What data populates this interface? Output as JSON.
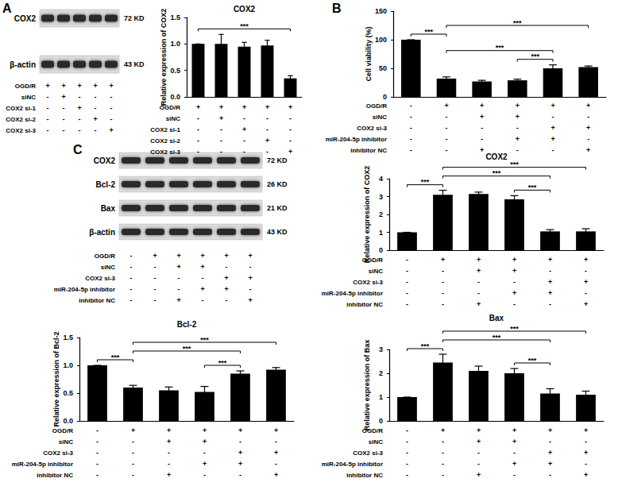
{
  "panel_labels": [
    "A",
    "B",
    "C"
  ],
  "blots": [
    {
      "bands": [
        {
          "name": "COX2",
          "size": "72 KD"
        },
        {
          "name": "β-actin",
          "size": "43 KD"
        }
      ],
      "conditions": [
        {
          "name": "OGD/R",
          "marks": [
            "+",
            "+",
            "+",
            "+",
            "+"
          ]
        },
        {
          "name": "siNC",
          "marks": [
            "-",
            "+",
            "-",
            "-",
            "-"
          ]
        },
        {
          "name": "COX2 si-1",
          "marks": [
            "-",
            "-",
            "+",
            "-",
            "-"
          ]
        },
        {
          "name": "COX2 si-2",
          "marks": [
            "-",
            "-",
            "-",
            "+",
            "-"
          ]
        },
        {
          "name": "COX2 si-3",
          "marks": [
            "-",
            "-",
            "-",
            "-",
            "+"
          ]
        }
      ]
    },
    {
      "bands": [
        {
          "name": "COX2",
          "size": "72 KD"
        },
        {
          "name": "Bcl-2",
          "size": "26 KD"
        },
        {
          "name": "Bax",
          "size": "21 KD"
        },
        {
          "name": "β-actin",
          "size": "43 KD"
        }
      ],
      "conditions": [
        {
          "name": "OGD/R",
          "marks": [
            "-",
            "+",
            "+",
            "+",
            "+",
            "+"
          ]
        },
        {
          "name": "siNC",
          "marks": [
            "-",
            "-",
            "+",
            "+",
            "-",
            "-"
          ]
        },
        {
          "name": "COX2 si-3",
          "marks": [
            "-",
            "-",
            "-",
            "-",
            "+",
            "+"
          ]
        },
        {
          "name": "miR-204-5p inhibitor",
          "marks": [
            "-",
            "-",
            "-",
            "+",
            "+",
            "-"
          ]
        },
        {
          "name": "inhibitor NC",
          "marks": [
            "-",
            "-",
            "+",
            "-",
            "-",
            "+"
          ]
        }
      ]
    }
  ],
  "chart_data": [
    {
      "type": "bar",
      "title": "COX2",
      "y_label": "Relative expression of COX2",
      "categories": [
        null,
        null,
        null,
        null,
        null
      ],
      "values": [
        1.0,
        1.0,
        0.95,
        0.97,
        0.35
      ],
      "errors": [
        0,
        0.18,
        0.08,
        0.1,
        0.05
      ],
      "color": "#000000",
      "ylim": [
        0,
        1.5
      ],
      "yticks": [
        {
          "value": 0,
          "label": "0.0"
        },
        0.5,
        {
          "value": 1,
          "label": "1.0"
        },
        1.5
      ],
      "grid": false,
      "tick_labels": "y",
      "conditions": [
        {
          "name": "OGD/R",
          "marks": [
            "+",
            "+",
            "+",
            "+",
            "+"
          ]
        },
        {
          "name": "siNC",
          "marks": [
            "-",
            "+",
            "-",
            "-",
            "-"
          ]
        },
        {
          "name": "COX2 si-1",
          "marks": [
            "-",
            "-",
            "+",
            "-",
            "-"
          ]
        },
        {
          "name": "COX2 si-2",
          "marks": [
            "-",
            "-",
            "-",
            "+",
            "-"
          ]
        },
        {
          "name": "COX2 si-3",
          "marks": [
            "-",
            "-",
            "-",
            "-",
            "+"
          ]
        }
      ],
      "significance": [
        {
          "from": 0,
          "to": 4,
          "label": "***"
        }
      ]
    },
    {
      "type": "bar",
      "y_label": "Cell viability (%)",
      "categories": [
        null,
        null,
        null,
        null,
        null,
        null
      ],
      "values": [
        100,
        32,
        27,
        29,
        50,
        52
      ],
      "errors": [
        0,
        3,
        2,
        2,
        6,
        2
      ],
      "color": "#000000",
      "ylim": [
        0,
        150
      ],
      "yticks": [
        0,
        50,
        100,
        150
      ],
      "grid": false,
      "tick_labels": "y",
      "conditions": [
        {
          "name": "OGD/R",
          "marks": [
            "-",
            "+",
            "+",
            "+",
            "+",
            "+"
          ]
        },
        {
          "name": "siNC",
          "marks": [
            "-",
            "-",
            "+",
            "+",
            "-",
            "-"
          ]
        },
        {
          "name": "COX2 si-3",
          "marks": [
            "-",
            "-",
            "-",
            "-",
            "+",
            "+"
          ]
        },
        {
          "name": "miR-204-5p inhibitor",
          "marks": [
            "-",
            "-",
            "-",
            "+",
            "+",
            "-"
          ]
        },
        {
          "name": "inhibitor NC",
          "marks": [
            "-",
            "-",
            "+",
            "-",
            "-",
            "+"
          ]
        }
      ],
      "significance": [
        {
          "from": 0,
          "to": 1,
          "label": "***"
        },
        {
          "from": 3,
          "to": 4,
          "label": "***"
        },
        {
          "from": 1,
          "to": 4,
          "label": "***"
        },
        {
          "from": 1,
          "to": 5,
          "label": "***"
        }
      ]
    },
    {
      "type": "bar",
      "title": "COX2",
      "y_label": "Relative expression of COX2",
      "categories": [
        null,
        null,
        null,
        null,
        null,
        null
      ],
      "values": [
        1.0,
        3.1,
        3.15,
        2.85,
        1.05,
        1.05
      ],
      "errors": [
        0,
        0.25,
        0.1,
        0.2,
        0.1,
        0.15
      ],
      "color": "#000000",
      "ylim": [
        0,
        4
      ],
      "yticks": [
        0,
        1,
        2,
        3,
        4
      ],
      "grid": false,
      "tick_labels": "y",
      "conditions": [
        {
          "name": "OGD/R",
          "marks": [
            "-",
            "+",
            "+",
            "+",
            "+",
            "+"
          ]
        },
        {
          "name": "siNC",
          "marks": [
            "-",
            "-",
            "+",
            "+",
            "-",
            "-"
          ]
        },
        {
          "name": "COX2 si-3",
          "marks": [
            "-",
            "-",
            "-",
            "-",
            "+",
            "+"
          ]
        },
        {
          "name": "miR-204-5p inhibitor",
          "marks": [
            "-",
            "-",
            "-",
            "+",
            "+",
            "-"
          ]
        },
        {
          "name": "inhibitor NC",
          "marks": [
            "-",
            "-",
            "+",
            "-",
            "-",
            "+"
          ]
        }
      ],
      "significance": [
        {
          "from": 0,
          "to": 1,
          "label": "***"
        },
        {
          "from": 3,
          "to": 4,
          "label": "***"
        },
        {
          "from": 1,
          "to": 4,
          "label": "***"
        },
        {
          "from": 1,
          "to": 5,
          "label": "***"
        }
      ]
    },
    {
      "type": "bar",
      "title": "Bcl-2",
      "y_label": "Relative expression of Bcl-2",
      "categories": [
        null,
        null,
        null,
        null,
        null,
        null
      ],
      "values": [
        1.0,
        0.6,
        0.55,
        0.52,
        0.85,
        0.92
      ],
      "errors": [
        0,
        0.04,
        0.06,
        0.1,
        0.05,
        0.04
      ],
      "color": "#000000",
      "ylim": [
        0,
        1.5
      ],
      "yticks": [
        {
          "value": 0,
          "label": "0.0"
        },
        0.5,
        {
          "value": 1,
          "label": "1.0"
        },
        1.5
      ],
      "grid": false,
      "tick_labels": "y",
      "conditions": [
        {
          "name": "OGD/R",
          "marks": [
            "-",
            "+",
            "+",
            "+",
            "+",
            "+"
          ]
        },
        {
          "name": "siNC",
          "marks": [
            "-",
            "-",
            "+",
            "+",
            "-",
            "-"
          ]
        },
        {
          "name": "COX2 si-3",
          "marks": [
            "-",
            "-",
            "-",
            "-",
            "+",
            "+"
          ]
        },
        {
          "name": "miR-204-5p inhibitor",
          "marks": [
            "-",
            "-",
            "-",
            "+",
            "+",
            "-"
          ]
        },
        {
          "name": "inhibitor NC",
          "marks": [
            "-",
            "-",
            "+",
            "-",
            "-",
            "+"
          ]
        }
      ],
      "significance": [
        {
          "from": 0,
          "to": 1,
          "label": "***"
        },
        {
          "from": 3,
          "to": 4,
          "label": "***"
        },
        {
          "from": 1,
          "to": 4,
          "label": "***"
        },
        {
          "from": 1,
          "to": 5,
          "label": "***"
        }
      ]
    },
    {
      "type": "bar",
      "title": "Bax",
      "y_label": "Relative expression of Bax",
      "categories": [
        null,
        null,
        null,
        null,
        null,
        null
      ],
      "values": [
        1.0,
        2.45,
        2.1,
        2.0,
        1.15,
        1.1
      ],
      "errors": [
        0,
        0.35,
        0.2,
        0.2,
        0.2,
        0.15
      ],
      "color": "#000000",
      "ylim": [
        0,
        3
      ],
      "yticks": [
        0,
        1,
        2,
        3
      ],
      "grid": false,
      "tick_labels": "y",
      "conditions": [
        {
          "name": "OGD/R",
          "marks": [
            "-",
            "+",
            "+",
            "+",
            "+",
            "+"
          ]
        },
        {
          "name": "siNC",
          "marks": [
            "-",
            "-",
            "+",
            "+",
            "-",
            "-"
          ]
        },
        {
          "name": "COX2 si-3",
          "marks": [
            "-",
            "-",
            "-",
            "-",
            "+",
            "+"
          ]
        },
        {
          "name": "miR-204-5p inhibitor",
          "marks": [
            "-",
            "-",
            "-",
            "+",
            "+",
            "-"
          ]
        },
        {
          "name": "inhibitor NC",
          "marks": [
            "-",
            "-",
            "+",
            "-",
            "-",
            "+"
          ]
        }
      ],
      "significance": [
        {
          "from": 0,
          "to": 1,
          "label": "***"
        },
        {
          "from": 3,
          "to": 4,
          "label": "***"
        },
        {
          "from": 1,
          "to": 4,
          "label": "***"
        },
        {
          "from": 1,
          "to": 5,
          "label": "***"
        }
      ]
    }
  ]
}
